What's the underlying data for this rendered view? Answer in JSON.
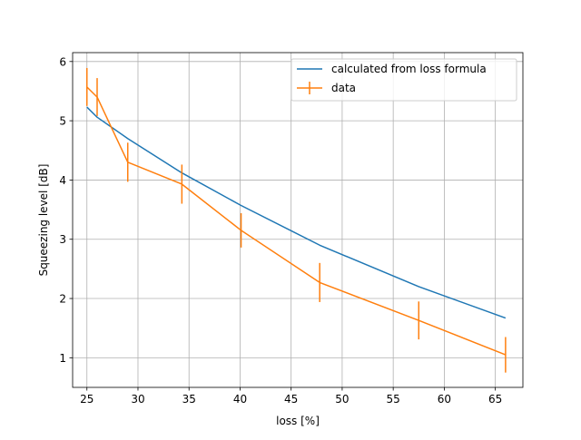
{
  "chart_data": {
    "type": "line",
    "title": "",
    "xlabel": "loss [%]",
    "ylabel": "Squeezing level [dB]",
    "xlim": [
      23.6,
      67.7
    ],
    "ylim": [
      0.5,
      6.15
    ],
    "xticks": [
      25,
      30,
      35,
      40,
      45,
      50,
      55,
      60,
      65
    ],
    "yticks": [
      1,
      2,
      3,
      4,
      5,
      6
    ],
    "grid": true,
    "legend_position": "top-right",
    "series": [
      {
        "name": "calculated from loss formula",
        "color": "#1f77b4",
        "kind": "line",
        "x": [
          25,
          26,
          29,
          34.3,
          40.1,
          47.8,
          57.5,
          66
        ],
        "y": [
          5.23,
          5.06,
          4.7,
          4.12,
          3.57,
          2.9,
          2.2,
          1.67
        ]
      },
      {
        "name": "data",
        "color": "#ff7f0e",
        "kind": "errorbar",
        "x": [
          25,
          26,
          29,
          34.3,
          40.1,
          47.8,
          57.5,
          66
        ],
        "y": [
          5.57,
          5.4,
          4.3,
          3.93,
          3.15,
          2.27,
          1.63,
          1.05
        ],
        "yerr": [
          0.32,
          0.32,
          0.33,
          0.33,
          0.29,
          0.33,
          0.32,
          0.3
        ]
      }
    ]
  }
}
